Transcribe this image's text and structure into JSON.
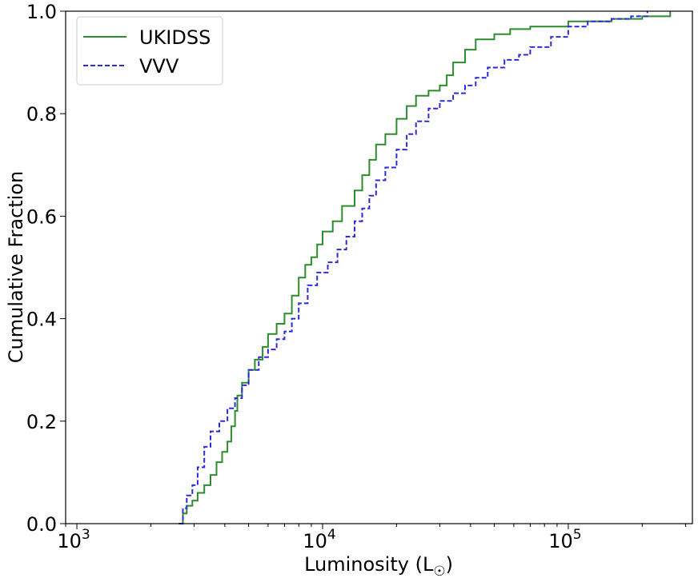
{
  "chart_data": {
    "type": "line",
    "xscale": "log",
    "xlim": [
      900,
      320000
    ],
    "ylim": [
      0.0,
      1.0
    ],
    "xlabel": "Luminosity (L",
    "xlabel_symbol": "☉",
    "xlabel_close": ")",
    "ylabel": "Cumulative Fraction",
    "grid": false,
    "legend_position": "top-left",
    "x_ticks": [
      {
        "base": "10",
        "exp": "3",
        "value": 1000
      },
      {
        "base": "10",
        "exp": "4",
        "value": 10000
      },
      {
        "base": "10",
        "exp": "5",
        "value": 100000
      }
    ],
    "y_ticks": [
      {
        "label": "0.0",
        "value": 0.0
      },
      {
        "label": "0.2",
        "value": 0.2
      },
      {
        "label": "0.4",
        "value": 0.4
      },
      {
        "label": "0.6",
        "value": 0.6
      },
      {
        "label": "0.8",
        "value": 0.8
      },
      {
        "label": "1.0",
        "value": 1.0
      }
    ],
    "series": [
      {
        "name": "UKIDSS",
        "color": "#2e8b2e",
        "dash": "solid",
        "points": [
          [
            2600,
            0.0
          ],
          [
            2700,
            0.02
          ],
          [
            2800,
            0.035
          ],
          [
            2950,
            0.045
          ],
          [
            3100,
            0.06
          ],
          [
            3300,
            0.075
          ],
          [
            3500,
            0.095
          ],
          [
            3700,
            0.12
          ],
          [
            3900,
            0.14
          ],
          [
            4100,
            0.16
          ],
          [
            4250,
            0.19
          ],
          [
            4400,
            0.22
          ],
          [
            4500,
            0.25
          ],
          [
            4700,
            0.275
          ],
          [
            5000,
            0.3
          ],
          [
            5300,
            0.32
          ],
          [
            5700,
            0.345
          ],
          [
            6000,
            0.37
          ],
          [
            6500,
            0.39
          ],
          [
            7000,
            0.41
          ],
          [
            7500,
            0.445
          ],
          [
            8000,
            0.48
          ],
          [
            8500,
            0.505
          ],
          [
            9000,
            0.52
          ],
          [
            9500,
            0.545
          ],
          [
            10000,
            0.57
          ],
          [
            11000,
            0.59
          ],
          [
            12000,
            0.62
          ],
          [
            13500,
            0.65
          ],
          [
            14500,
            0.68
          ],
          [
            15500,
            0.71
          ],
          [
            16500,
            0.74
          ],
          [
            18000,
            0.76
          ],
          [
            20000,
            0.79
          ],
          [
            22000,
            0.815
          ],
          [
            24000,
            0.835
          ],
          [
            27000,
            0.845
          ],
          [
            30000,
            0.855
          ],
          [
            32000,
            0.875
          ],
          [
            34000,
            0.9
          ],
          [
            38000,
            0.925
          ],
          [
            42000,
            0.945
          ],
          [
            50000,
            0.955
          ],
          [
            58000,
            0.965
          ],
          [
            70000,
            0.97
          ],
          [
            90000,
            0.97
          ],
          [
            100000,
            0.98
          ],
          [
            150000,
            0.985
          ],
          [
            200000,
            0.99
          ],
          [
            260000,
            1.0
          ]
        ]
      },
      {
        "name": "VVV",
        "color": "#2b2bd9",
        "dash": "dashed",
        "points": [
          [
            2600,
            0.0
          ],
          [
            2700,
            0.03
          ],
          [
            2800,
            0.055
          ],
          [
            2950,
            0.075
          ],
          [
            3100,
            0.11
          ],
          [
            3300,
            0.15
          ],
          [
            3500,
            0.18
          ],
          [
            3800,
            0.2
          ],
          [
            4100,
            0.225
          ],
          [
            4400,
            0.245
          ],
          [
            4700,
            0.27
          ],
          [
            5000,
            0.3
          ],
          [
            5500,
            0.325
          ],
          [
            6000,
            0.34
          ],
          [
            6500,
            0.36
          ],
          [
            7000,
            0.375
          ],
          [
            7500,
            0.4
          ],
          [
            8000,
            0.43
          ],
          [
            8700,
            0.465
          ],
          [
            9500,
            0.49
          ],
          [
            10500,
            0.51
          ],
          [
            11500,
            0.535
          ],
          [
            12500,
            0.56
          ],
          [
            13500,
            0.59
          ],
          [
            14500,
            0.615
          ],
          [
            15500,
            0.64
          ],
          [
            16500,
            0.67
          ],
          [
            18000,
            0.695
          ],
          [
            20000,
            0.73
          ],
          [
            22000,
            0.76
          ],
          [
            24000,
            0.785
          ],
          [
            27000,
            0.81
          ],
          [
            30000,
            0.825
          ],
          [
            34000,
            0.84
          ],
          [
            38000,
            0.855
          ],
          [
            42000,
            0.87
          ],
          [
            47000,
            0.89
          ],
          [
            55000,
            0.905
          ],
          [
            63000,
            0.915
          ],
          [
            70000,
            0.93
          ],
          [
            85000,
            0.95
          ],
          [
            100000,
            0.97
          ],
          [
            120000,
            0.98
          ],
          [
            150000,
            0.985
          ],
          [
            180000,
            0.99
          ],
          [
            210000,
            1.0
          ]
        ]
      }
    ]
  }
}
